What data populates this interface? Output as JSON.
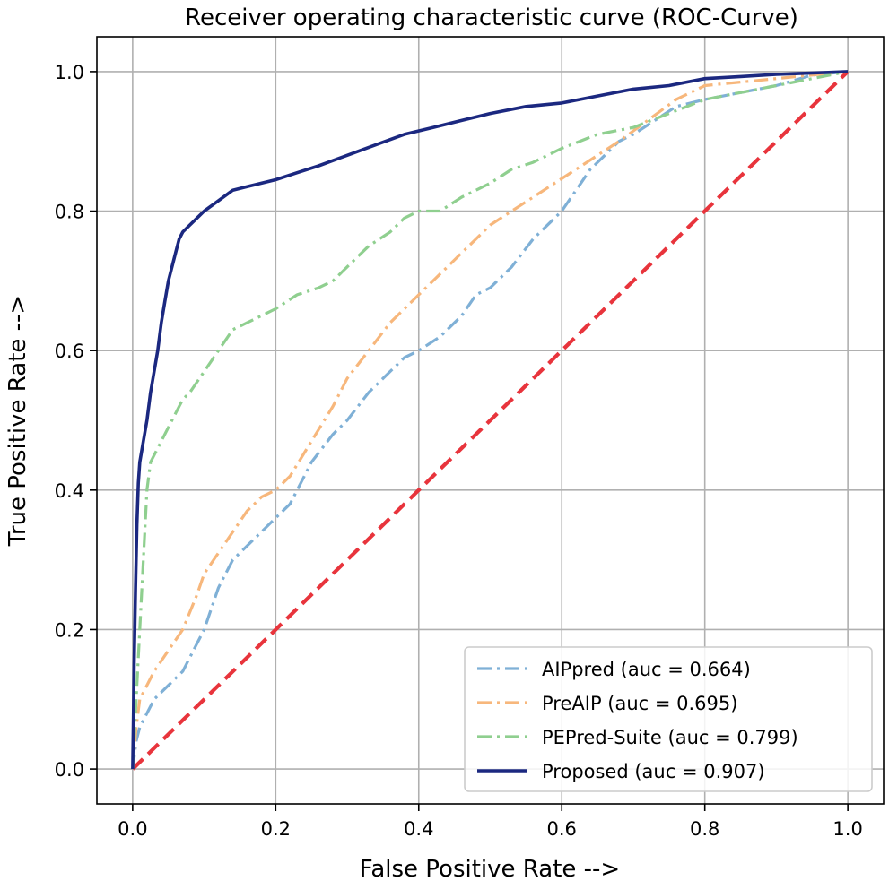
{
  "chart_data": {
    "type": "line",
    "title": "Receiver operating characteristic curve (ROC-Curve)",
    "xlabel": "False Positive Rate -->",
    "ylabel": "True Positive Rate -->",
    "xlim": [
      -0.05,
      1.05
    ],
    "ylim": [
      -0.05,
      1.05
    ],
    "xticks": [
      "0.0",
      "0.2",
      "0.4",
      "0.6",
      "0.8",
      "1.0"
    ],
    "yticks": [
      "0.0",
      "0.2",
      "0.4",
      "0.6",
      "0.8",
      "1.0"
    ],
    "grid": true,
    "legend_position": "lower right",
    "series": [
      {
        "name": "AIPpred (auc = 0.664)",
        "color": "#7fb0d6",
        "style": "dashdot",
        "x": [
          0,
          0.005,
          0.01,
          0.03,
          0.05,
          0.07,
          0.09,
          0.1,
          0.12,
          0.14,
          0.16,
          0.18,
          0.2,
          0.22,
          0.25,
          0.28,
          0.3,
          0.33,
          0.36,
          0.38,
          0.4,
          0.43,
          0.46,
          0.48,
          0.5,
          0.53,
          0.56,
          0.59,
          0.6,
          0.62,
          0.64,
          0.66,
          0.68,
          0.7,
          0.73,
          0.76,
          0.8,
          0.85,
          0.9,
          0.95,
          1.0
        ],
        "y": [
          0,
          0.04,
          0.06,
          0.1,
          0.12,
          0.14,
          0.18,
          0.2,
          0.26,
          0.3,
          0.32,
          0.34,
          0.36,
          0.38,
          0.44,
          0.48,
          0.5,
          0.54,
          0.57,
          0.59,
          0.6,
          0.62,
          0.65,
          0.68,
          0.69,
          0.72,
          0.76,
          0.79,
          0.8,
          0.83,
          0.86,
          0.88,
          0.9,
          0.91,
          0.93,
          0.95,
          0.96,
          0.97,
          0.98,
          0.995,
          1.0
        ]
      },
      {
        "name": "PreAIP (auc = 0.695)",
        "color": "#f7b77c",
        "style": "dashdot",
        "x": [
          0,
          0.005,
          0.01,
          0.03,
          0.05,
          0.07,
          0.09,
          0.1,
          0.12,
          0.14,
          0.16,
          0.18,
          0.2,
          0.22,
          0.25,
          0.28,
          0.3,
          0.33,
          0.36,
          0.38,
          0.4,
          0.42,
          0.44,
          0.46,
          0.48,
          0.5,
          0.53,
          0.56,
          0.59,
          0.62,
          0.65,
          0.68,
          0.72,
          0.76,
          0.8,
          0.85,
          0.9,
          0.95,
          1.0
        ],
        "y": [
          0,
          0.06,
          0.1,
          0.14,
          0.17,
          0.2,
          0.25,
          0.28,
          0.31,
          0.34,
          0.37,
          0.39,
          0.4,
          0.42,
          0.47,
          0.52,
          0.56,
          0.6,
          0.64,
          0.66,
          0.68,
          0.7,
          0.72,
          0.74,
          0.76,
          0.78,
          0.8,
          0.82,
          0.84,
          0.86,
          0.88,
          0.9,
          0.93,
          0.96,
          0.98,
          0.985,
          0.99,
          0.995,
          1.0
        ]
      },
      {
        "name": "PEPred-Suite (auc = 0.799)",
        "color": "#8fcf8f",
        "style": "dashdot",
        "x": [
          0,
          0.005,
          0.01,
          0.015,
          0.02,
          0.025,
          0.03,
          0.04,
          0.05,
          0.06,
          0.07,
          0.08,
          0.1,
          0.12,
          0.14,
          0.16,
          0.18,
          0.2,
          0.23,
          0.26,
          0.28,
          0.3,
          0.33,
          0.36,
          0.38,
          0.4,
          0.43,
          0.46,
          0.48,
          0.5,
          0.53,
          0.56,
          0.6,
          0.65,
          0.7,
          0.75,
          0.8,
          0.85,
          0.9,
          0.95,
          1.0
        ],
        "y": [
          0,
          0.1,
          0.2,
          0.3,
          0.4,
          0.44,
          0.45,
          0.47,
          0.49,
          0.51,
          0.53,
          0.54,
          0.57,
          0.6,
          0.63,
          0.64,
          0.65,
          0.66,
          0.68,
          0.69,
          0.7,
          0.72,
          0.75,
          0.77,
          0.79,
          0.8,
          0.8,
          0.82,
          0.83,
          0.84,
          0.86,
          0.87,
          0.89,
          0.91,
          0.92,
          0.94,
          0.96,
          0.97,
          0.98,
          0.99,
          1.0
        ]
      },
      {
        "name": "Proposed (auc = 0.907)",
        "color": "#1b2880",
        "style": "solid",
        "x": [
          0,
          0.002,
          0.004,
          0.006,
          0.008,
          0.01,
          0.015,
          0.02,
          0.025,
          0.03,
          0.035,
          0.04,
          0.045,
          0.05,
          0.055,
          0.06,
          0.065,
          0.07,
          0.08,
          0.09,
          0.1,
          0.12,
          0.14,
          0.16,
          0.18,
          0.2,
          0.23,
          0.26,
          0.3,
          0.34,
          0.38,
          0.42,
          0.46,
          0.5,
          0.55,
          0.6,
          0.65,
          0.7,
          0.75,
          0.8,
          0.85,
          0.9,
          0.95,
          1.0
        ],
        "y": [
          0,
          0.15,
          0.26,
          0.35,
          0.41,
          0.44,
          0.47,
          0.5,
          0.54,
          0.57,
          0.6,
          0.64,
          0.67,
          0.7,
          0.72,
          0.74,
          0.76,
          0.77,
          0.78,
          0.79,
          0.8,
          0.815,
          0.83,
          0.835,
          0.84,
          0.845,
          0.855,
          0.865,
          0.88,
          0.895,
          0.91,
          0.92,
          0.93,
          0.94,
          0.95,
          0.955,
          0.965,
          0.975,
          0.98,
          0.99,
          0.993,
          0.996,
          0.998,
          1.0
        ]
      },
      {
        "name": "",
        "color": "#e8343c",
        "style": "dashed",
        "x": [
          0,
          1
        ],
        "y": [
          0,
          1
        ]
      }
    ]
  }
}
